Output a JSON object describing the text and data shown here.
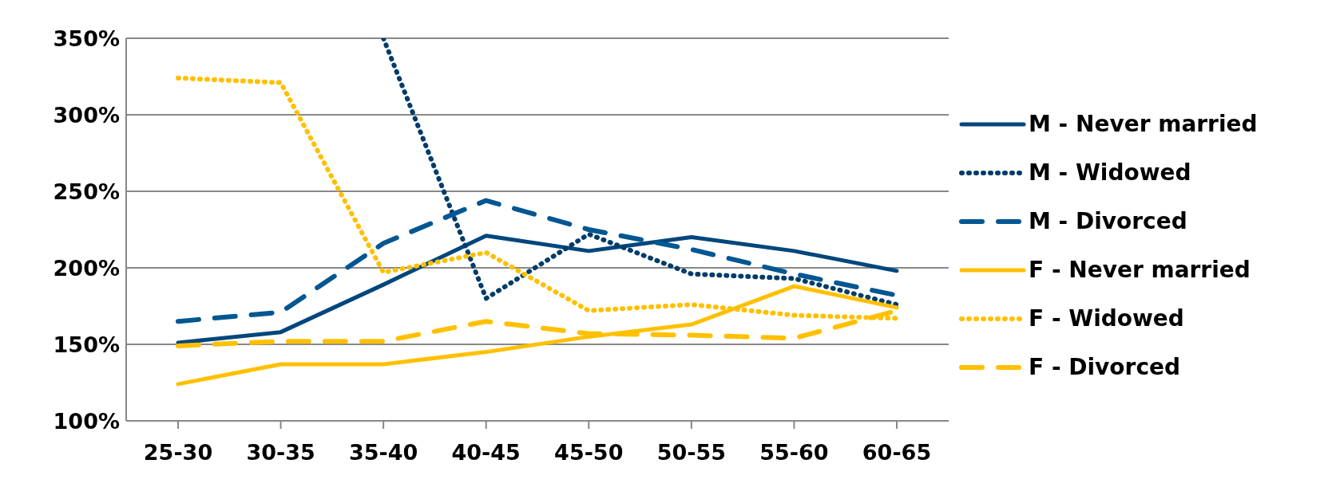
{
  "chart_data": {
    "type": "line",
    "categories": [
      "25-30",
      "30-35",
      "35-40",
      "40-45",
      "45-50",
      "50-55",
      "55-60",
      "60-65"
    ],
    "series": [
      {
        "name": "M - Never married",
        "color": "#00467c",
        "line_style": "solid",
        "values": [
          151,
          158,
          189,
          221,
          211,
          220,
          211,
          198
        ]
      },
      {
        "name": "M - Widowed",
        "color": "#003c6a",
        "line_style": "dotted",
        "values": [
          null,
          null,
          350,
          180,
          222,
          196,
          193,
          176
        ]
      },
      {
        "name": "M - Divorced",
        "color": "#005791",
        "line_style": "dashed",
        "values": [
          165,
          171,
          216,
          244,
          225,
          212,
          196,
          182
        ]
      },
      {
        "name": "F - Never married",
        "color": "#ffc000",
        "line_style": "solid",
        "values": [
          124,
          137,
          137,
          145,
          155,
          163,
          188,
          174
        ]
      },
      {
        "name": "F - Widowed",
        "color": "#ffc000",
        "line_style": "dotted",
        "values": [
          324,
          321,
          197,
          210,
          172,
          176,
          169,
          167
        ]
      },
      {
        "name": "F - Divorced",
        "color": "#ffc000",
        "line_style": "dashed",
        "values": [
          149,
          152,
          152,
          165,
          157,
          156,
          154,
          172
        ]
      }
    ],
    "ylim": [
      100,
      350
    ],
    "yticks": [
      {
        "value": 100,
        "label": "100%"
      },
      {
        "value": 150,
        "label": "150%"
      },
      {
        "value": 200,
        "label": "200%"
      },
      {
        "value": 250,
        "label": "250%"
      },
      {
        "value": 300,
        "label": "300%"
      },
      {
        "value": 350,
        "label": "350%"
      }
    ],
    "grid": "y",
    "legend": "right",
    "marker": "none"
  }
}
